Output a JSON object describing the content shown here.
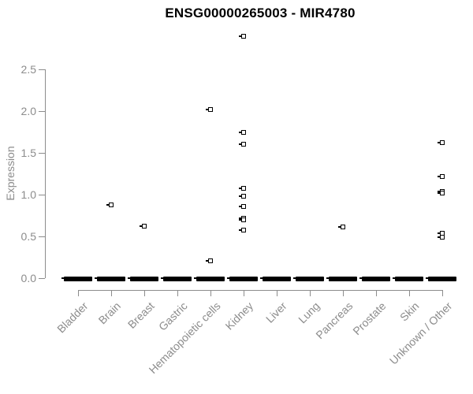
{
  "title": "ENSG00000265003 - MIR4780",
  "chart_data": {
    "type": "scatter",
    "subtype": "strip-plot",
    "title": "ENSG00000265003 - MIR4780",
    "xlabel": "",
    "ylabel": "Expression",
    "grid": false,
    "legend": "none",
    "marker_style": "open-square",
    "ylim": [
      0.0,
      2.95
    ],
    "yticks": [
      "0.0",
      "0.5",
      "1.0",
      "1.5",
      "2.0",
      "2.5"
    ],
    "ytick_values": [
      0.0,
      0.5,
      1.0,
      1.5,
      2.0,
      2.5
    ],
    "categories": [
      "Bladder",
      "Brain",
      "Breast",
      "Gastric",
      "Hematopoietic cells",
      "Kidney",
      "Liver",
      "Lung",
      "Pancreas",
      "Prostate",
      "Skin",
      "Unknown / Other"
    ],
    "series": [
      {
        "name": "Bladder",
        "nonzero_values": [],
        "zero_cluster": true
      },
      {
        "name": "Brain",
        "nonzero_values": [
          0.88
        ],
        "zero_cluster": true
      },
      {
        "name": "Breast",
        "nonzero_values": [
          0.62
        ],
        "zero_cluster": true
      },
      {
        "name": "Gastric",
        "nonzero_values": [],
        "zero_cluster": true
      },
      {
        "name": "Hematopoietic cells",
        "nonzero_values": [
          2.02,
          0.21
        ],
        "zero_cluster": true
      },
      {
        "name": "Kidney",
        "nonzero_values": [
          2.9,
          1.75,
          1.6,
          1.08,
          0.98,
          0.86,
          0.72,
          0.7,
          0.58
        ],
        "zero_cluster": true
      },
      {
        "name": "Liver",
        "nonzero_values": [],
        "zero_cluster": true
      },
      {
        "name": "Lung",
        "nonzero_values": [],
        "zero_cluster": true
      },
      {
        "name": "Pancreas",
        "nonzero_values": [
          0.61
        ],
        "zero_cluster": true
      },
      {
        "name": "Prostate",
        "nonzero_values": [],
        "zero_cluster": true
      },
      {
        "name": "Skin",
        "nonzero_values": [],
        "zero_cluster": true
      },
      {
        "name": "Unknown / Other",
        "nonzero_values": [
          1.62,
          1.22,
          1.04,
          1.02,
          0.54,
          0.49
        ],
        "zero_cluster": true
      }
    ],
    "colors": {
      "marker": "#000000",
      "axis": "#8c8c8c",
      "axis_text": "#8c8c8c",
      "title_text": "#000000",
      "background": "#ffffff"
    }
  }
}
